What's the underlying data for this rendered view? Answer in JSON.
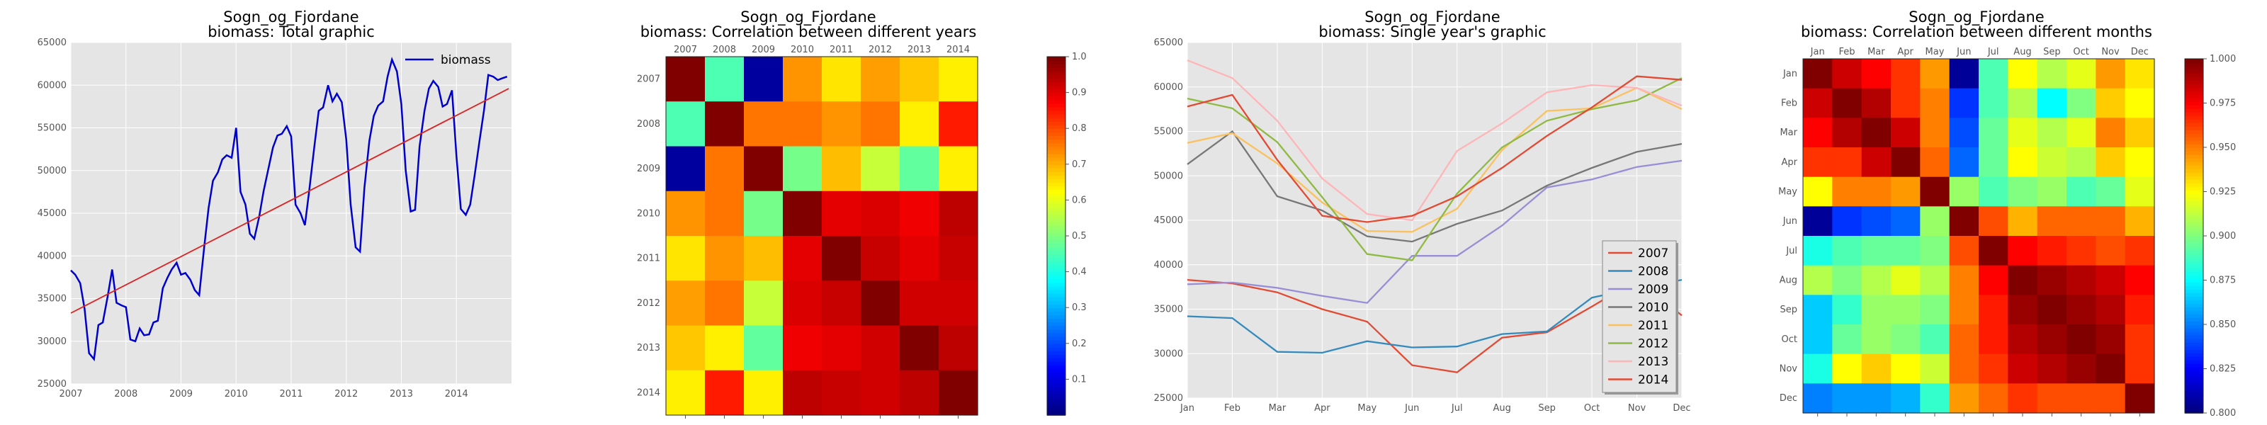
{
  "figure": {
    "background": "#ffffff",
    "panel_bg": "#e5e5e5"
  },
  "chart_data": [
    {
      "type": "line",
      "title": "Sogn_og_Fjordane",
      "subtitle": "biomass: Total graphic",
      "xlim": [
        2007,
        2015
      ],
      "ylim": [
        25000,
        65000
      ],
      "xticks": [
        "2007",
        "2008",
        "2009",
        "2010",
        "2011",
        "2012",
        "2013",
        "2014"
      ],
      "yticks": [
        "25000",
        "30000",
        "35000",
        "40000",
        "45000",
        "50000",
        "55000",
        "60000",
        "65000"
      ],
      "legend": {
        "position": "top-right",
        "entries": [
          "biomass"
        ]
      },
      "series": [
        {
          "name": "biomass",
          "color": "#0000cc",
          "x": [
            2007.0,
            2007.08,
            2007.17,
            2007.25,
            2007.33,
            2007.42,
            2007.5,
            2007.58,
            2007.67,
            2007.75,
            2007.83,
            2007.92,
            2008.0,
            2008.08,
            2008.17,
            2008.25,
            2008.33,
            2008.42,
            2008.5,
            2008.58,
            2008.67,
            2008.75,
            2008.83,
            2008.92,
            2009.0,
            2009.08,
            2009.17,
            2009.25,
            2009.33,
            2009.42,
            2009.5,
            2009.58,
            2009.67,
            2009.75,
            2009.83,
            2009.92,
            2010.0,
            2010.08,
            2010.17,
            2010.25,
            2010.33,
            2010.42,
            2010.5,
            2010.58,
            2010.67,
            2010.75,
            2010.83,
            2010.92,
            2011.0,
            2011.08,
            2011.17,
            2011.25,
            2011.33,
            2011.42,
            2011.5,
            2011.58,
            2011.67,
            2011.75,
            2011.83,
            2011.92,
            2012.0,
            2012.08,
            2012.17,
            2012.25,
            2012.33,
            2012.42,
            2012.5,
            2012.58,
            2012.67,
            2012.75,
            2012.83,
            2012.92,
            2013.0,
            2013.08,
            2013.17,
            2013.25,
            2013.33,
            2013.42,
            2013.5,
            2013.58,
            2013.67,
            2013.75,
            2013.83,
            2013.92,
            2014.0,
            2014.08,
            2014.17,
            2014.25,
            2014.33,
            2014.42,
            2014.5,
            2014.58,
            2014.67,
            2014.75,
            2014.83,
            2014.92
          ],
          "y": [
            38300,
            37800,
            36800,
            33800,
            28600,
            27900,
            31900,
            32200,
            35300,
            38400,
            34500,
            34200,
            34000,
            30200,
            30000,
            31500,
            30700,
            30800,
            32200,
            32400,
            36200,
            37400,
            38400,
            39200,
            37800,
            38000,
            37200,
            36000,
            35400,
            41000,
            45600,
            48800,
            49800,
            51300,
            51800,
            51500,
            55000,
            47500,
            46000,
            42600,
            42000,
            44600,
            47600,
            50000,
            52700,
            54100,
            54300,
            55200,
            54000,
            46000,
            45000,
            43600,
            47800,
            52800,
            57000,
            57400,
            60000,
            58100,
            59000,
            58000,
            53600,
            46000,
            41000,
            40500,
            48000,
            53500,
            56400,
            57600,
            58100,
            61000,
            63000,
            61600,
            57800,
            50000,
            45200,
            45400,
            52800,
            57000,
            59600,
            60500,
            59800,
            57500,
            57800,
            59400,
            51700,
            45500,
            44800,
            46000,
            49400,
            53500,
            57000,
            61200,
            61000,
            60600,
            60800,
            61000
          ]
        },
        {
          "name": "trend",
          "color": "#dd2222",
          "x": [
            2007.0,
            2014.95
          ],
          "y": [
            33300,
            59600
          ]
        }
      ]
    },
    {
      "type": "heatmap",
      "title": "Sogn_og_Fjordane",
      "subtitle": "biomass: Correlation between different years",
      "xticks": [
        "2007",
        "2008",
        "2009",
        "2010",
        "2011",
        "2012",
        "2013",
        "2014"
      ],
      "yticks": [
        "2007",
        "2008",
        "2009",
        "2010",
        "2011",
        "2012",
        "2013",
        "2014"
      ],
      "colorbar": {
        "min": 0.0,
        "max": 1.0,
        "ticks": [
          "0.1",
          "0.2",
          "0.3",
          "0.4",
          "0.5",
          "0.6",
          "0.7",
          "0.8",
          "0.9",
          "1.0"
        ]
      },
      "matrix": [
        [
          1.0,
          0.45,
          0.03,
          0.73,
          0.65,
          0.72,
          0.68,
          0.64
        ],
        [
          0.45,
          1.0,
          0.76,
          0.76,
          0.73,
          0.76,
          0.64,
          0.85
        ],
        [
          0.03,
          0.76,
          1.0,
          0.49,
          0.69,
          0.57,
          0.47,
          0.64
        ],
        [
          0.73,
          0.76,
          0.49,
          1.0,
          0.9,
          0.91,
          0.89,
          0.94
        ],
        [
          0.65,
          0.73,
          0.69,
          0.9,
          1.0,
          0.93,
          0.9,
          0.93
        ],
        [
          0.72,
          0.76,
          0.57,
          0.91,
          0.93,
          1.0,
          0.92,
          0.92
        ],
        [
          0.68,
          0.64,
          0.47,
          0.89,
          0.9,
          0.92,
          1.0,
          0.94
        ],
        [
          0.64,
          0.85,
          0.64,
          0.94,
          0.93,
          0.92,
          0.94,
          1.0
        ]
      ]
    },
    {
      "type": "line",
      "title": "Sogn_og_Fjordane",
      "subtitle": "biomass: Single year's graphic",
      "categories": [
        "Jan",
        "Feb",
        "Mar",
        "Apr",
        "May",
        "Jun",
        "Jul",
        "Aug",
        "Sep",
        "Oct",
        "Nov",
        "Dec"
      ],
      "ylim": [
        25000,
        65000
      ],
      "yticks": [
        "25000",
        "30000",
        "35000",
        "40000",
        "45000",
        "50000",
        "55000",
        "60000",
        "65000"
      ],
      "legend": {
        "position": "bottom-right"
      },
      "series": [
        {
          "name": "2007",
          "color": "#e24a33",
          "values": [
            38300,
            37900,
            36900,
            35000,
            33600,
            28700,
            27900,
            31800,
            32400,
            35300,
            38300,
            34300
          ]
        },
        {
          "name": "2008",
          "color": "#348abd",
          "values": [
            34200,
            34000,
            30200,
            30100,
            31400,
            30700,
            30800,
            32200,
            32500,
            36300,
            37400,
            38300
          ]
        },
        {
          "name": "2009",
          "color": "#988ed5",
          "values": [
            37800,
            38000,
            37400,
            36500,
            35700,
            41000,
            41000,
            44400,
            48700,
            49600,
            51000,
            51700
          ]
        },
        {
          "name": "2010",
          "color": "#777777",
          "values": [
            51300,
            55000,
            47700,
            46100,
            43200,
            42600,
            44600,
            46100,
            48900,
            50900,
            52700,
            53600
          ]
        },
        {
          "name": "2011",
          "color": "#fbc15e",
          "values": [
            53700,
            54800,
            51400,
            47000,
            43800,
            43700,
            46300,
            52900,
            57300,
            57600,
            59900,
            57500
          ]
        },
        {
          "name": "2012",
          "color": "#8eba42",
          "values": [
            58700,
            57600,
            53800,
            47600,
            41200,
            40500,
            48000,
            53200,
            56200,
            57500,
            58500,
            61000
          ]
        },
        {
          "name": "2013",
          "color": "#ffb5b8",
          "values": [
            63000,
            61000,
            56200,
            49700,
            45700,
            45000,
            52800,
            55900,
            59400,
            60200,
            59900,
            57900
          ]
        },
        {
          "name": "2014",
          "color": "#e24a33",
          "values": [
            57800,
            59100,
            51800,
            45500,
            44800,
            45500,
            47700,
            50900,
            54500,
            57700,
            61200,
            60800
          ]
        }
      ]
    },
    {
      "type": "heatmap",
      "title": "Sogn_og_Fjordane",
      "subtitle": "biomass: Correlation between different months",
      "xticks": [
        "Jan",
        "Feb",
        "Mar",
        "Apr",
        "May",
        "Jun",
        "Jul",
        "Aug",
        "Sep",
        "Oct",
        "Nov",
        "Dec"
      ],
      "yticks": [
        "Jan",
        "Feb",
        "Mar",
        "Apr",
        "May",
        "Jun",
        "Jul",
        "Aug",
        "Sep",
        "Oct",
        "Nov",
        "Dec"
      ],
      "colorbar": {
        "min": 0.8,
        "max": 1.0,
        "ticks": [
          "0.800",
          "0.825",
          "0.850",
          "0.875",
          "0.900",
          "0.925",
          "0.950",
          "0.975",
          "1.000"
        ]
      },
      "matrix": [
        [
          1.0,
          0.985,
          0.975,
          0.965,
          0.945,
          0.805,
          0.89,
          0.925,
          0.91,
          0.92,
          0.945,
          0.93
        ],
        [
          0.985,
          1.0,
          0.99,
          0.965,
          0.95,
          0.835,
          0.89,
          0.91,
          0.875,
          0.9,
          0.935,
          0.925
        ],
        [
          0.975,
          0.99,
          1.0,
          0.985,
          0.95,
          0.84,
          0.895,
          0.92,
          0.91,
          0.92,
          0.95,
          0.935
        ],
        [
          0.965,
          0.965,
          0.985,
          1.0,
          0.955,
          0.845,
          0.895,
          0.925,
          0.915,
          0.91,
          0.935,
          0.925
        ],
        [
          0.925,
          0.95,
          0.95,
          0.945,
          1.0,
          0.905,
          0.89,
          0.9,
          0.905,
          0.89,
          0.895,
          0.92
        ],
        [
          0.805,
          0.835,
          0.84,
          0.845,
          0.905,
          1.0,
          0.96,
          0.94,
          0.955,
          0.955,
          0.955,
          0.94
        ],
        [
          0.88,
          0.89,
          0.895,
          0.895,
          0.9,
          0.96,
          1.0,
          0.975,
          0.97,
          0.965,
          0.96,
          0.965
        ],
        [
          0.91,
          0.9,
          0.91,
          0.92,
          0.91,
          0.95,
          0.975,
          1.0,
          0.995,
          0.99,
          0.985,
          0.975
        ],
        [
          0.865,
          0.885,
          0.905,
          0.905,
          0.9,
          0.95,
          0.97,
          0.995,
          1.0,
          0.995,
          0.99,
          0.97
        ],
        [
          0.865,
          0.895,
          0.905,
          0.9,
          0.89,
          0.955,
          0.97,
          0.99,
          0.995,
          1.0,
          0.995,
          0.965
        ],
        [
          0.88,
          0.925,
          0.935,
          0.925,
          0.915,
          0.955,
          0.965,
          0.985,
          0.99,
          0.995,
          1.0,
          0.965
        ],
        [
          0.85,
          0.855,
          0.855,
          0.86,
          0.885,
          0.945,
          0.955,
          0.965,
          0.96,
          0.96,
          0.96,
          1.0
        ]
      ]
    }
  ]
}
